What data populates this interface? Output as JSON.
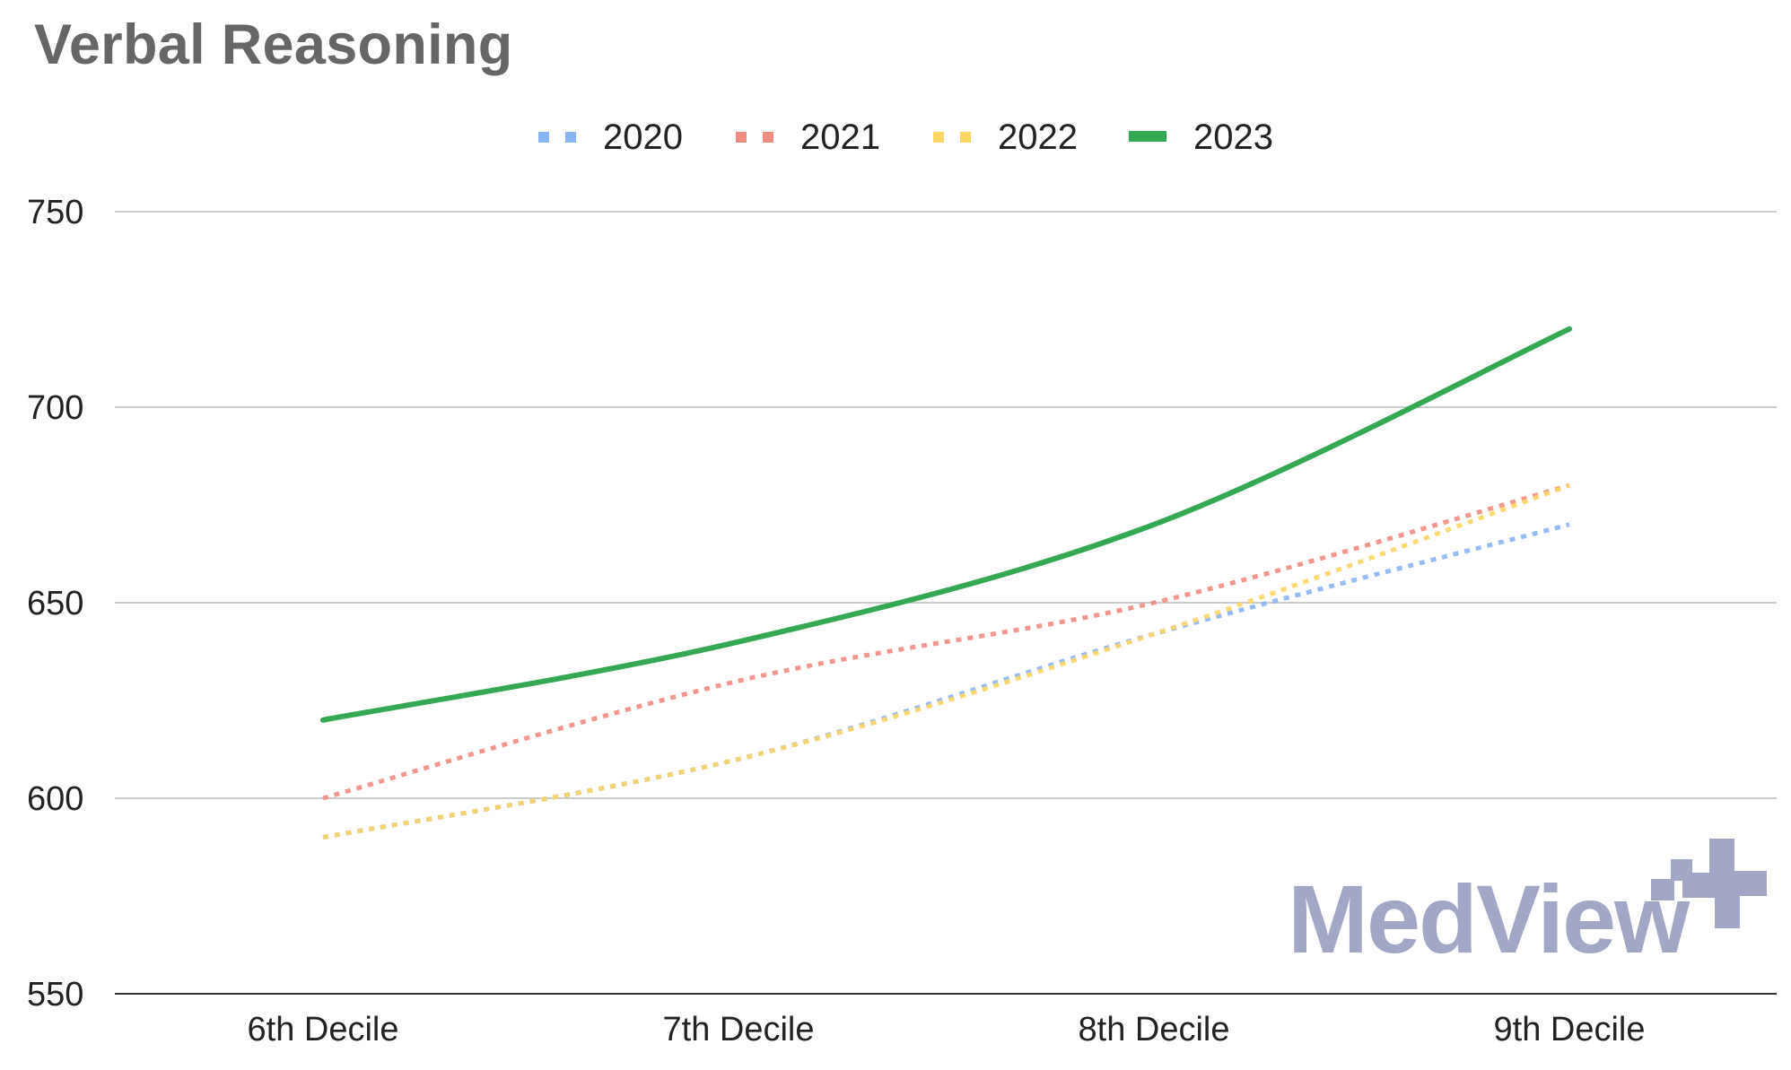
{
  "chart_data": {
    "type": "line",
    "title": "Verbal Reasoning",
    "xlabel": "",
    "ylabel": "",
    "categories": [
      "6th Decile",
      "7th Decile",
      "8th Decile",
      "9th Decile"
    ],
    "ylim": [
      550,
      750
    ],
    "yticks": [
      550,
      600,
      650,
      700,
      750
    ],
    "grid": true,
    "legend_position": "top",
    "series": [
      {
        "name": "2020",
        "values": [
          590,
          610,
          642,
          670
        ],
        "color": "#8ab4f8",
        "style": "dotted"
      },
      {
        "name": "2021",
        "values": [
          600,
          630,
          650,
          680
        ],
        "color": "#f28b82",
        "style": "dotted"
      },
      {
        "name": "2022",
        "values": [
          590,
          610,
          642,
          680
        ],
        "color": "#fdd663",
        "style": "dotted"
      },
      {
        "name": "2023",
        "values": [
          620,
          640,
          670,
          720
        ],
        "color": "#34a853",
        "style": "solid"
      }
    ]
  },
  "watermark": {
    "text": "MedView",
    "color": "#a2a7c6"
  }
}
